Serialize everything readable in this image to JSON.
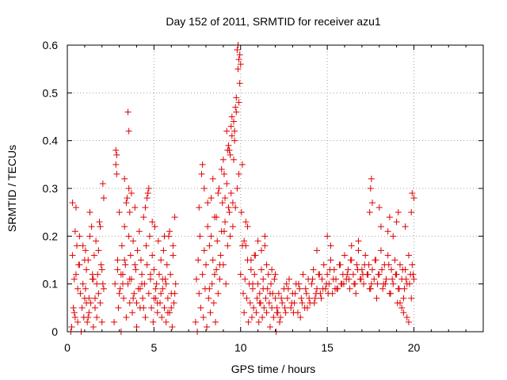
{
  "chart_data": {
    "type": "scatter",
    "title": "Day 152 of 2011, SRMTID for receiver azu1",
    "xlabel": "GPS time / hours",
    "ylabel": "SRMTID / TECUs",
    "xlim": [
      0,
      24
    ],
    "ylim": [
      0,
      0.6
    ],
    "xticks": [
      0,
      5,
      10,
      15,
      20
    ],
    "yticks": [
      0,
      0.1,
      0.2,
      0.3,
      0.4,
      0.5,
      0.6
    ],
    "xtick_labels": [
      "0",
      "5",
      "10",
      "15",
      "20"
    ],
    "ytick_labels": [
      "0",
      "0.1",
      "0.2",
      "0.3",
      "0.4",
      "0.5",
      "0.6"
    ],
    "grid": true,
    "marker": "+",
    "series": [
      {
        "name": "SRMTID",
        "color": "#e00000",
        "x": [
          0.2,
          0.25,
          0.3,
          0.35,
          0.4,
          0.45,
          0.5,
          0.55,
          0.6,
          0.65,
          0.7,
          0.75,
          0.8,
          0.85,
          0.9,
          0.95,
          1.0,
          1.05,
          1.1,
          1.15,
          1.2,
          1.25,
          1.3,
          1.35,
          1.4,
          1.45,
          1.5,
          1.55,
          1.6,
          1.65,
          1.7,
          1.75,
          1.8,
          1.85,
          1.9,
          1.95,
          2.0,
          2.05,
          2.1,
          0.4,
          0.5,
          0.6,
          0.9,
          1.0,
          1.1,
          1.2,
          1.3,
          1.5,
          1.6,
          1.7,
          1.9,
          2.0,
          2.1,
          0.3,
          0.45,
          0.7,
          1.05,
          1.25,
          1.45,
          1.8,
          2.05,
          2.7,
          2.75,
          2.8,
          2.85,
          2.9,
          2.95,
          3.0,
          3.05,
          3.1,
          3.15,
          3.2,
          3.25,
          3.3,
          3.35,
          3.4,
          3.45,
          3.5,
          3.55,
          3.6,
          3.65,
          3.7,
          3.75,
          3.8,
          3.85,
          3.9,
          3.95,
          4.0,
          4.05,
          4.1,
          4.15,
          4.2,
          4.25,
          4.3,
          4.35,
          4.4,
          4.45,
          4.5,
          4.55,
          4.6,
          4.65,
          4.7,
          4.75,
          4.8,
          4.85,
          4.9,
          4.95,
          5.0,
          5.05,
          5.1,
          5.15,
          5.2,
          5.25,
          5.3,
          5.35,
          5.4,
          5.45,
          5.5,
          5.55,
          5.6,
          5.65,
          5.7,
          5.75,
          5.8,
          5.85,
          5.9,
          5.95,
          6.0,
          6.05,
          6.1,
          6.15,
          6.2,
          6.25,
          2.8,
          2.85,
          3.5,
          3.55,
          3.55,
          3.6,
          3.4,
          3.3,
          3.7,
          4.5,
          4.6,
          4.7,
          4.9,
          5.6,
          5.9,
          6.1,
          3.0,
          3.2,
          3.8,
          4.0,
          4.2,
          4.4,
          5.0,
          5.2,
          5.4,
          5.8,
          6.0,
          2.9,
          3.1,
          3.3,
          3.6,
          3.9,
          4.3,
          4.8,
          5.1,
          5.5,
          5.7,
          6.2,
          7.4,
          7.45,
          7.5,
          7.55,
          7.6,
          7.65,
          7.7,
          7.75,
          7.8,
          7.85,
          7.9,
          7.95,
          8.0,
          8.05,
          8.1,
          8.15,
          8.2,
          8.25,
          8.3,
          8.35,
          8.4,
          8.45,
          8.5,
          8.55,
          8.6,
          8.65,
          8.7,
          8.75,
          8.8,
          8.85,
          8.9,
          8.95,
          9.0,
          9.05,
          9.1,
          9.15,
          9.2,
          9.25,
          9.3,
          9.35,
          9.4,
          9.45,
          9.5,
          9.55,
          9.6,
          9.65,
          9.7,
          9.75,
          9.8,
          9.85,
          9.9,
          9.95,
          10.0,
          10.05,
          10.1,
          10.15,
          10.2,
          10.25,
          10.3,
          10.35,
          10.4,
          10.45,
          10.5,
          10.55,
          10.6,
          10.65,
          10.7,
          10.75,
          10.8,
          10.85,
          10.9,
          10.95,
          11.0,
          11.05,
          11.1,
          11.15,
          11.2,
          11.25,
          11.3,
          11.35,
          11.4,
          11.45,
          11.5,
          11.55,
          11.6,
          11.65,
          11.7,
          11.75,
          11.8,
          11.85,
          11.9,
          11.95,
          12.0,
          12.05,
          12.1,
          9.8,
          9.85,
          9.9,
          9.95,
          10.0,
          9.6,
          9.7,
          9.5,
          9.3,
          9.2,
          9.4,
          8.9,
          9.0,
          9.1,
          7.8,
          7.9,
          8.4,
          8.1,
          8.6,
          7.6,
          10.2,
          10.4,
          10.8,
          11.5,
          11.2,
          12.0,
          10.6,
          11.8,
          9.65,
          9.75,
          9.45,
          9.25,
          10.1,
          8.3,
          8.7,
          11.0,
          11.4,
          8.2,
          8.5,
          8.8,
          9.05,
          9.35,
          9.55,
          9.9,
          10.3,
          10.7,
          11.1,
          11.3,
          11.7,
          12.1,
          12.2,
          12.3,
          12.4,
          12.5,
          12.6,
          12.7,
          12.8,
          12.9,
          13.0,
          13.1,
          13.2,
          13.3,
          13.4,
          13.5,
          13.6,
          13.7,
          13.8,
          13.9,
          14.0,
          14.1,
          14.2,
          14.3,
          14.4,
          14.5,
          14.6,
          14.7,
          14.8,
          14.9,
          15.0,
          15.1,
          15.2,
          15.3,
          15.4,
          15.5,
          15.6,
          15.7,
          15.8,
          15.9,
          16.0,
          16.1,
          16.2,
          16.3,
          16.4,
          16.5,
          16.6,
          16.7,
          16.8,
          16.9,
          17.0,
          17.1,
          17.2,
          17.3,
          17.4,
          17.5,
          17.6,
          17.7,
          17.8,
          17.9,
          18.0,
          18.1,
          18.2,
          18.3,
          18.4,
          18.5,
          18.6,
          18.7,
          18.8,
          18.9,
          19.0,
          19.1,
          19.2,
          19.3,
          19.4,
          19.5,
          19.6,
          19.7,
          19.8,
          19.9,
          20.0,
          12.15,
          12.35,
          12.55,
          12.75,
          12.95,
          13.15,
          13.35,
          13.55,
          13.75,
          13.95,
          14.15,
          14.35,
          14.55,
          14.75,
          14.95,
          15.15,
          15.35,
          15.55,
          15.75,
          15.95,
          16.15,
          16.35,
          16.55,
          16.75,
          16.95,
          17.15,
          17.35,
          17.55,
          17.75,
          17.95,
          18.15,
          18.35,
          18.55,
          18.75,
          18.95,
          19.15,
          19.35,
          19.55,
          19.75,
          19.95,
          12.25,
          12.65,
          13.05,
          13.45,
          13.85,
          14.25,
          14.65,
          15.05,
          15.45,
          15.85,
          16.25,
          16.65,
          17.05,
          17.45,
          17.85,
          18.25,
          18.65,
          19.05,
          19.45,
          19.85,
          17.5,
          17.55,
          17.6,
          17.45,
          18.0,
          18.1,
          18.5,
          18.6,
          19.0,
          19.1,
          19.5,
          19.9,
          20.0,
          19.85,
          15.0,
          15.2,
          14.4,
          16.4,
          16.8,
          18.8,
          19.4,
          19.6,
          19.3,
          19.2,
          19.7
        ],
        "y": [
          0.0,
          0.01,
          0.27,
          0.05,
          0.11,
          0.03,
          0.26,
          0.18,
          0.02,
          0.14,
          0.2,
          0.08,
          0.0,
          0.05,
          0.1,
          0.03,
          0.07,
          0.17,
          0.13,
          0.02,
          0.15,
          0.04,
          0.25,
          0.06,
          0.22,
          0.11,
          0.01,
          0.16,
          0.05,
          0.19,
          0.03,
          0.12,
          0.08,
          0.23,
          0.06,
          0.14,
          0.02,
          0.31,
          0.28,
          0.04,
          0.12,
          0.09,
          0.18,
          0.15,
          0.06,
          0.03,
          0.2,
          0.11,
          0.07,
          0.1,
          0.22,
          0.13,
          0.09,
          0.16,
          0.21,
          0.14,
          0.09,
          0.07,
          0.12,
          0.17,
          0.1,
          0.02,
          0.1,
          0.38,
          0.33,
          0.15,
          0.05,
          0.25,
          0.09,
          0.0,
          0.18,
          0.12,
          0.07,
          0.22,
          0.14,
          0.03,
          0.28,
          0.1,
          0.2,
          0.06,
          0.16,
          0.11,
          0.04,
          0.19,
          0.08,
          0.26,
          0.13,
          0.01,
          0.17,
          0.09,
          0.21,
          0.05,
          0.15,
          0.12,
          0.07,
          0.24,
          0.1,
          0.03,
          0.18,
          0.14,
          0.29,
          0.08,
          0.2,
          0.11,
          0.05,
          0.16,
          0.02,
          0.13,
          0.22,
          0.07,
          0.1,
          0.04,
          0.19,
          0.12,
          0.06,
          0.15,
          0.03,
          0.09,
          0.17,
          0.05,
          0.11,
          0.02,
          0.14,
          0.07,
          0.2,
          0.04,
          0.12,
          0.08,
          0.01,
          0.16,
          0.06,
          0.24,
          0.1,
          0.35,
          0.37,
          0.46,
          0.42,
          0.3,
          0.25,
          0.27,
          0.32,
          0.29,
          0.26,
          0.28,
          0.3,
          0.23,
          0.2,
          0.21,
          0.18,
          0.08,
          0.1,
          0.07,
          0.06,
          0.09,
          0.05,
          0.07,
          0.06,
          0.08,
          0.04,
          0.05,
          0.13,
          0.12,
          0.15,
          0.11,
          0.14,
          0.1,
          0.12,
          0.09,
          0.11,
          0.1,
          0.08,
          0.02,
          0.11,
          0.0,
          0.15,
          0.08,
          0.2,
          0.05,
          0.33,
          0.12,
          0.03,
          0.17,
          0.09,
          0.14,
          0.01,
          0.22,
          0.07,
          0.18,
          0.04,
          0.28,
          0.1,
          0.15,
          0.06,
          0.24,
          0.02,
          0.13,
          0.19,
          0.08,
          0.3,
          0.11,
          0.16,
          0.21,
          0.27,
          0.14,
          0.33,
          0.23,
          0.1,
          0.31,
          0.18,
          0.26,
          0.38,
          0.2,
          0.29,
          0.45,
          0.22,
          0.36,
          0.42,
          0.26,
          0.49,
          0.3,
          0.55,
          0.48,
          0.58,
          0.12,
          0.25,
          0.18,
          0.08,
          0.04,
          0.11,
          0.23,
          0.07,
          0.15,
          0.02,
          0.1,
          0.06,
          0.13,
          0.03,
          0.09,
          0.05,
          0.12,
          0.16,
          0.04,
          0.07,
          0.1,
          0.02,
          0.08,
          0.06,
          0.13,
          0.03,
          0.11,
          0.05,
          0.2,
          0.07,
          0.04,
          0.09,
          0.12,
          0.06,
          0.01,
          0.1,
          0.05,
          0.08,
          0.03,
          0.11,
          0.07,
          0.0,
          0.04,
          0.59,
          0.6,
          0.57,
          0.52,
          0.56,
          0.44,
          0.47,
          0.41,
          0.39,
          0.42,
          0.37,
          0.34,
          0.36,
          0.28,
          0.35,
          0.3,
          0.32,
          0.27,
          0.24,
          0.26,
          0.19,
          0.22,
          0.16,
          0.14,
          0.17,
          0.12,
          0.15,
          0.13,
          0.4,
          0.46,
          0.43,
          0.38,
          0.35,
          0.2,
          0.29,
          0.19,
          0.18,
          0.09,
          0.12,
          0.14,
          0.21,
          0.25,
          0.27,
          0.33,
          0.18,
          0.1,
          0.06,
          0.09,
          0.08,
          0.05,
          0.08,
          0.03,
          0.06,
          0.09,
          0.04,
          0.07,
          0.11,
          0.05,
          0.08,
          0.06,
          0.1,
          0.04,
          0.09,
          0.07,
          0.12,
          0.05,
          0.08,
          0.11,
          0.06,
          0.1,
          0.13,
          0.07,
          0.09,
          0.12,
          0.08,
          0.11,
          0.14,
          0.09,
          0.12,
          0.1,
          0.15,
          0.08,
          0.13,
          0.11,
          0.09,
          0.14,
          0.1,
          0.12,
          0.16,
          0.11,
          0.13,
          0.09,
          0.15,
          0.12,
          0.1,
          0.14,
          0.17,
          0.11,
          0.13,
          0.1,
          0.16,
          0.12,
          0.14,
          0.09,
          0.13,
          0.11,
          0.15,
          0.1,
          0.12,
          0.17,
          0.09,
          0.14,
          0.11,
          0.16,
          0.08,
          0.13,
          0.1,
          0.15,
          0.12,
          0.09,
          0.14,
          0.11,
          0.07,
          0.13,
          0.1,
          0.16,
          0.12,
          0.14,
          0.11,
          0.04,
          0.07,
          0.05,
          0.09,
          0.06,
          0.08,
          0.1,
          0.06,
          0.09,
          0.07,
          0.11,
          0.08,
          0.12,
          0.09,
          0.1,
          0.13,
          0.11,
          0.09,
          0.14,
          0.1,
          0.12,
          0.15,
          0.1,
          0.13,
          0.11,
          0.14,
          0.12,
          0.1,
          0.15,
          0.12,
          0.13,
          0.1,
          0.14,
          0.11,
          0.12,
          0.09,
          0.13,
          0.11,
          0.1,
          0.12,
          0.02,
          0.1,
          0.04,
          0.03,
          0.05,
          0.06,
          0.07,
          0.08,
          0.09,
          0.1,
          0.11,
          0.08,
          0.12,
          0.09,
          0.07,
          0.1,
          0.08,
          0.06,
          0.09,
          0.07,
          0.3,
          0.32,
          0.27,
          0.25,
          0.26,
          0.22,
          0.21,
          0.24,
          0.23,
          0.25,
          0.22,
          0.29,
          0.28,
          0.25,
          0.2,
          0.18,
          0.17,
          0.18,
          0.19,
          0.2,
          0.04,
          0.03,
          0.05,
          0.06,
          0.02
        ]
      }
    ]
  }
}
